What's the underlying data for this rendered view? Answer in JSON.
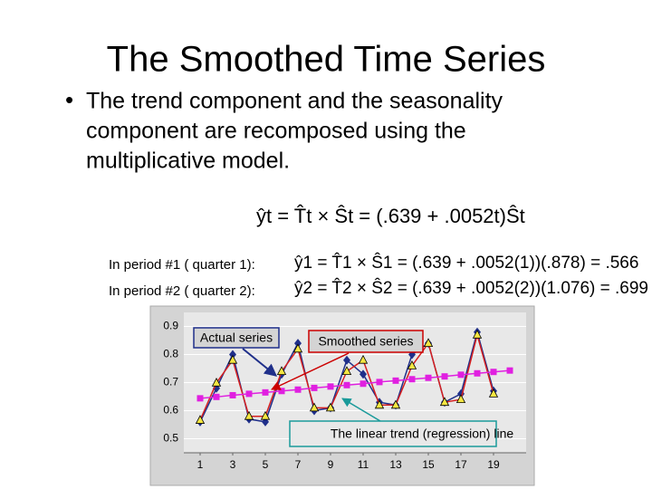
{
  "title": "The Smoothed Time Series",
  "bullet": [
    "The trend component and the seasonality",
    "component are recomposed using the",
    "multiplicative model."
  ],
  "formula": "ŷt = T̂t × Ŝt = (.639 + .0052t)Ŝt",
  "periods": [
    {
      "label": "In period #1 ( quarter 1):",
      "formula": "ŷ1 = T̂1 × Ŝ1 = (.639 + .0052(1))(.878) = .566"
    },
    {
      "label": "In period #2 ( quarter 2):",
      "formula": "ŷ2 = T̂2 × Ŝ2 = (.639 + .0052(2))(1.076) = .699"
    }
  ],
  "chart_data": {
    "type": "line",
    "x": [
      1,
      2,
      3,
      4,
      5,
      6,
      7,
      8,
      9,
      10,
      11,
      12,
      13,
      14,
      15,
      16,
      17,
      18,
      19,
      20
    ],
    "series": [
      {
        "name": "Actual series",
        "color": "#1f2f8a",
        "marker": "diamond",
        "values": [
          0.56,
          0.68,
          0.8,
          0.57,
          0.56,
          0.73,
          0.84,
          0.6,
          0.61,
          0.78,
          0.73,
          0.63,
          0.62,
          0.8,
          0.84,
          0.63,
          0.66,
          0.88,
          0.67,
          null
        ]
      },
      {
        "name": "Smoothed series",
        "color": "#d62020",
        "marker": "triangle",
        "values": [
          0.566,
          0.699,
          0.78,
          0.58,
          0.58,
          0.74,
          0.82,
          0.61,
          0.61,
          0.74,
          0.78,
          0.62,
          0.62,
          0.76,
          0.84,
          0.63,
          0.64,
          0.87,
          0.66,
          null
        ]
      },
      {
        "name": "The linear trend (regression) line",
        "color": "#e020e0",
        "marker": "square",
        "values": [
          0.644,
          0.649,
          0.655,
          0.66,
          0.665,
          0.67,
          0.675,
          0.681,
          0.686,
          0.691,
          0.696,
          0.702,
          0.707,
          0.712,
          0.717,
          0.722,
          0.728,
          0.733,
          0.738,
          0.743
        ]
      }
    ],
    "xlim": [
      0,
      21
    ],
    "xticks": [
      1,
      3,
      5,
      7,
      9,
      11,
      13,
      15,
      17,
      19
    ],
    "ylim": [
      0.45,
      0.95
    ],
    "yticks": [
      0.5,
      0.6,
      0.7,
      0.8,
      0.9
    ],
    "grid": true
  }
}
